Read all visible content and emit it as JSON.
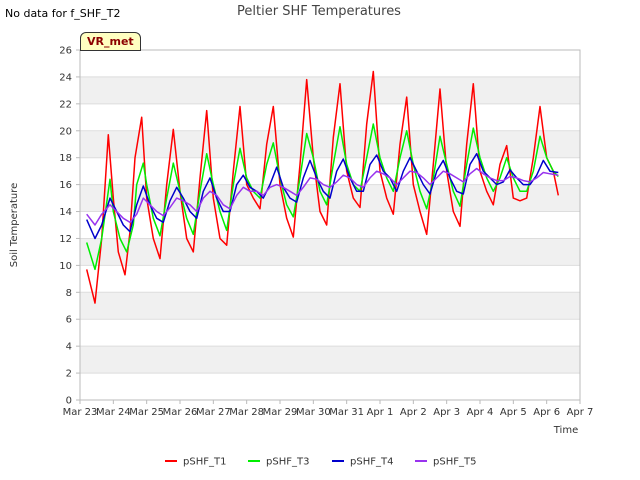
{
  "no_data_text": "No data for f_SHF_T2",
  "badge": "VR_met",
  "colors": {
    "pSHF_T1": "#ff0000",
    "pSHF_T3": "#00ee00",
    "pSHF_T4": "#0000cc",
    "pSHF_T5": "#9933ee",
    "band": "#f0f0f0",
    "grid": "#dddddd",
    "axis": "#bbbbbb"
  },
  "chart_data": {
    "type": "line",
    "title": "Peltier SHF Temperatures",
    "xlabel": "Time",
    "ylabel": "Soil Temperature",
    "xlim": [
      0,
      15
    ],
    "ylim": [
      0,
      26
    ],
    "grid": true,
    "legend_position": "bottom",
    "x_ticks": [
      {
        "x": 0,
        "label": "Mar 23"
      },
      {
        "x": 1,
        "label": "Mar 24"
      },
      {
        "x": 2,
        "label": "Mar 25"
      },
      {
        "x": 3,
        "label": "Mar 26"
      },
      {
        "x": 4,
        "label": "Mar 27"
      },
      {
        "x": 5,
        "label": "Mar 28"
      },
      {
        "x": 6,
        "label": "Mar 29"
      },
      {
        "x": 7,
        "label": "Mar 30"
      },
      {
        "x": 8,
        "label": "Mar 31"
      },
      {
        "x": 9,
        "label": "Apr 1"
      },
      {
        "x": 10,
        "label": "Apr 2"
      },
      {
        "x": 11,
        "label": "Apr 3"
      },
      {
        "x": 12,
        "label": "Apr 4"
      },
      {
        "x": 13,
        "label": "Apr 5"
      },
      {
        "x": 14,
        "label": "Apr 6"
      },
      {
        "x": 15,
        "label": "Apr 7"
      }
    ],
    "y_ticks": [
      0,
      2,
      4,
      6,
      8,
      10,
      12,
      14,
      16,
      18,
      20,
      22,
      24,
      26
    ],
    "series": [
      {
        "name": "pSHF_T1",
        "x": [
          0.2,
          0.45,
          0.65,
          0.85,
          1.0,
          1.15,
          1.35,
          1.5,
          1.65,
          1.85,
          2.0,
          2.2,
          2.4,
          2.6,
          2.8,
          3.0,
          3.2,
          3.4,
          3.6,
          3.8,
          4.0,
          4.2,
          4.4,
          4.6,
          4.8,
          5.0,
          5.2,
          5.4,
          5.6,
          5.8,
          6.0,
          6.2,
          6.4,
          6.6,
          6.8,
          7.0,
          7.2,
          7.4,
          7.6,
          7.8,
          8.0,
          8.2,
          8.4,
          8.6,
          8.8,
          9.0,
          9.2,
          9.4,
          9.6,
          9.8,
          10.0,
          10.2,
          10.4,
          10.6,
          10.8,
          11.0,
          11.2,
          11.4,
          11.6,
          11.8,
          12.0,
          12.2,
          12.4,
          12.6,
          12.8,
          13.0,
          13.2,
          13.4,
          13.6,
          13.8,
          14.0,
          14.2,
          14.35
        ],
        "y": [
          9.7,
          7.2,
          12.0,
          19.7,
          15.0,
          11.0,
          9.3,
          12.5,
          18.0,
          21.0,
          15.0,
          12.0,
          10.5,
          16.0,
          20.1,
          15.5,
          12.0,
          11.0,
          16.5,
          21.5,
          15.0,
          12.0,
          11.5,
          17.0,
          21.8,
          16.0,
          15.0,
          14.2,
          19.0,
          21.8,
          16.0,
          13.5,
          12.1,
          17.5,
          23.8,
          18.0,
          14.0,
          13.0,
          19.5,
          23.5,
          17.0,
          15.0,
          14.3,
          20.5,
          24.4,
          17.0,
          15.0,
          13.8,
          19.0,
          22.5,
          16.0,
          14.0,
          12.3,
          17.5,
          23.1,
          17.0,
          14.0,
          12.9,
          19.0,
          23.5,
          17.0,
          15.5,
          14.5,
          17.5,
          18.9,
          15.0,
          14.8,
          15.0,
          18.0,
          21.8,
          18.0,
          17.0,
          15.2
        ]
      },
      {
        "name": "pSHF_T3",
        "x": [
          0.2,
          0.45,
          0.65,
          0.9,
          1.0,
          1.2,
          1.4,
          1.6,
          1.7,
          1.9,
          2.0,
          2.2,
          2.4,
          2.6,
          2.8,
          3.0,
          3.2,
          3.4,
          3.6,
          3.8,
          4.0,
          4.2,
          4.4,
          4.6,
          4.8,
          5.0,
          5.2,
          5.4,
          5.6,
          5.8,
          6.0,
          6.2,
          6.4,
          6.6,
          6.8,
          7.0,
          7.2,
          7.4,
          7.6,
          7.8,
          8.0,
          8.2,
          8.4,
          8.6,
          8.8,
          9.0,
          9.2,
          9.4,
          9.6,
          9.8,
          10.0,
          10.2,
          10.4,
          10.6,
          10.8,
          11.0,
          11.2,
          11.4,
          11.6,
          11.8,
          12.0,
          12.2,
          12.4,
          12.6,
          12.8,
          13.0,
          13.2,
          13.4,
          13.6,
          13.8,
          14.0,
          14.2,
          14.35
        ],
        "y": [
          11.7,
          9.7,
          12.0,
          16.4,
          14.0,
          12.0,
          11.0,
          13.0,
          16.0,
          17.6,
          16.0,
          13.5,
          12.2,
          15.0,
          17.6,
          15.5,
          13.5,
          12.3,
          15.5,
          18.3,
          16.0,
          14.0,
          12.6,
          16.0,
          18.7,
          16.5,
          15.5,
          15.0,
          17.5,
          19.1,
          16.5,
          14.5,
          13.6,
          16.5,
          19.8,
          18.0,
          15.5,
          14.5,
          17.5,
          20.3,
          17.5,
          16.0,
          15.5,
          18.0,
          20.5,
          18.0,
          16.5,
          15.5,
          18.0,
          20.0,
          17.5,
          15.5,
          14.2,
          16.5,
          19.6,
          17.5,
          15.5,
          14.4,
          17.5,
          20.2,
          18.0,
          16.5,
          15.5,
          16.5,
          18.0,
          16.5,
          15.5,
          15.5,
          17.0,
          19.6,
          18.0,
          17.0,
          16.6
        ]
      },
      {
        "name": "pSHF_T4",
        "x": [
          0.2,
          0.45,
          0.65,
          0.9,
          1.1,
          1.3,
          1.5,
          1.7,
          1.9,
          2.1,
          2.3,
          2.5,
          2.7,
          2.9,
          3.1,
          3.3,
          3.5,
          3.7,
          3.9,
          4.1,
          4.3,
          4.5,
          4.7,
          4.9,
          5.1,
          5.3,
          5.5,
          5.7,
          5.9,
          6.1,
          6.3,
          6.5,
          6.7,
          6.9,
          7.1,
          7.3,
          7.5,
          7.7,
          7.9,
          8.1,
          8.3,
          8.5,
          8.7,
          8.9,
          9.1,
          9.3,
          9.5,
          9.7,
          9.9,
          10.1,
          10.3,
          10.5,
          10.7,
          10.9,
          11.1,
          11.3,
          11.5,
          11.7,
          11.9,
          12.1,
          12.3,
          12.5,
          12.7,
          12.9,
          13.1,
          13.3,
          13.5,
          13.7,
          13.9,
          14.1,
          14.35
        ],
        "y": [
          13.4,
          12.0,
          13.0,
          15.0,
          14.0,
          13.0,
          12.5,
          14.5,
          15.9,
          14.5,
          13.5,
          13.2,
          14.8,
          15.8,
          15.0,
          14.0,
          13.5,
          15.5,
          16.5,
          15.0,
          14.0,
          14.0,
          16.0,
          16.7,
          15.8,
          15.5,
          15.0,
          16.0,
          17.3,
          15.8,
          15.0,
          14.7,
          16.5,
          17.8,
          16.5,
          15.5,
          15.0,
          17.0,
          17.9,
          16.5,
          15.5,
          15.5,
          17.5,
          18.2,
          17.0,
          16.5,
          15.5,
          17.0,
          18.0,
          17.0,
          16.0,
          15.3,
          17.0,
          17.8,
          16.5,
          15.5,
          15.3,
          17.5,
          18.3,
          17.0,
          16.5,
          16.0,
          16.2,
          17.1,
          16.5,
          16.0,
          16.0,
          16.7,
          17.8,
          17.0,
          16.9
        ]
      },
      {
        "name": "pSHF_T5",
        "x": [
          0.2,
          0.45,
          0.65,
          0.9,
          1.1,
          1.3,
          1.5,
          1.7,
          1.9,
          2.1,
          2.3,
          2.5,
          2.7,
          2.9,
          3.1,
          3.3,
          3.5,
          3.7,
          3.9,
          4.1,
          4.3,
          4.5,
          4.7,
          4.9,
          5.1,
          5.3,
          5.5,
          5.7,
          5.9,
          6.1,
          6.3,
          6.5,
          6.7,
          6.9,
          7.1,
          7.3,
          7.5,
          7.7,
          7.9,
          8.1,
          8.3,
          8.5,
          8.7,
          8.9,
          9.1,
          9.3,
          9.5,
          9.7,
          9.9,
          10.1,
          10.3,
          10.5,
          10.7,
          10.9,
          11.1,
          11.3,
          11.5,
          11.7,
          11.9,
          12.1,
          12.3,
          12.5,
          12.7,
          12.9,
          13.1,
          13.3,
          13.5,
          13.7,
          13.9,
          14.1,
          14.35
        ],
        "y": [
          13.8,
          13.0,
          13.8,
          14.5,
          14.0,
          13.5,
          13.2,
          13.8,
          15.0,
          14.5,
          14.0,
          13.7,
          14.3,
          15.0,
          14.8,
          14.5,
          14.0,
          15.0,
          15.5,
          15.2,
          14.5,
          14.2,
          15.2,
          15.8,
          15.5,
          15.5,
          15.2,
          15.8,
          16.0,
          15.8,
          15.5,
          15.2,
          15.8,
          16.5,
          16.4,
          16.0,
          15.8,
          16.2,
          16.7,
          16.5,
          16.0,
          15.8,
          16.5,
          17.0,
          16.8,
          16.5,
          16.0,
          16.5,
          17.0,
          16.9,
          16.5,
          16.0,
          16.5,
          17.0,
          16.8,
          16.5,
          16.2,
          16.8,
          17.2,
          16.8,
          16.5,
          16.3,
          16.3,
          16.6,
          16.5,
          16.3,
          16.2,
          16.5,
          16.9,
          16.8,
          16.7
        ]
      }
    ]
  }
}
